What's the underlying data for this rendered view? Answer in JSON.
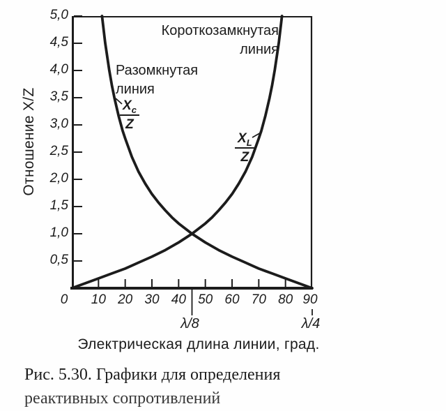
{
  "ink": "#1c1c1c",
  "chart_data": {
    "type": "line",
    "title": "",
    "xlabel": "Электрическая длина линии, град.",
    "ylabel": "Отношение X/Z",
    "xlim": [
      0,
      90
    ],
    "ylim": [
      0,
      5
    ],
    "grid": false,
    "legend_position": "none",
    "x_tick_values": [
      0,
      10,
      20,
      30,
      40,
      50,
      60,
      70,
      80,
      90
    ],
    "x_tick_labels": [
      "0",
      "10",
      "20",
      "30",
      "40",
      "50",
      "60",
      "70",
      "80",
      "90"
    ],
    "x_tick_marks": [
      10,
      20,
      30,
      40,
      50,
      60,
      70,
      80
    ],
    "y_tick_values": [
      0.5,
      1.0,
      1.5,
      2.0,
      2.5,
      3.0,
      3.5,
      4.0,
      4.5,
      5.0
    ],
    "y_tick_labels": [
      "0,5",
      "1,0",
      "1,5",
      "2,0",
      "2,5",
      "3,0",
      "3,5",
      "4,0",
      "4,5",
      "5,0"
    ],
    "x_markers": [
      {
        "deg": 45,
        "label": "λ/8"
      },
      {
        "deg": 90,
        "label": "λ/4"
      }
    ],
    "series": [
      {
        "name": "Разомкнутая линия — Xc/Z = ctg θ",
        "label": {
          "base": "X",
          "sub": "c",
          "den": "Z"
        },
        "x": [
          11.31,
          12.5,
          14,
          15,
          16,
          17.5,
          19,
          20,
          22.5,
          25,
          27.5,
          30,
          32.5,
          35,
          37.5,
          40,
          45,
          50,
          55,
          60,
          65,
          70,
          75,
          80,
          85,
          90
        ],
        "y": [
          5.0,
          4.51,
          4.01,
          3.73,
          3.49,
          3.17,
          2.9,
          2.75,
          2.41,
          2.14,
          1.92,
          1.73,
          1.57,
          1.43,
          1.3,
          1.19,
          1.0,
          0.84,
          0.7,
          0.58,
          0.47,
          0.36,
          0.27,
          0.18,
          0.09,
          0.0
        ]
      },
      {
        "name": "Короткозамкнутая линия — XL/Z = tg θ",
        "label": {
          "base": "X",
          "sub": "L",
          "den": "Z"
        },
        "x": [
          0,
          5,
          10,
          15,
          20,
          25,
          30,
          35,
          40,
          45,
          50,
          52.5,
          55,
          57.5,
          60,
          62.5,
          65,
          67.5,
          70,
          71,
          72.5,
          74,
          75,
          76,
          77.5,
          78.69
        ],
        "y": [
          0,
          0.09,
          0.18,
          0.27,
          0.36,
          0.47,
          0.58,
          0.7,
          0.84,
          1.0,
          1.19,
          1.3,
          1.43,
          1.57,
          1.73,
          1.92,
          2.14,
          2.41,
          2.75,
          2.9,
          3.17,
          3.49,
          3.73,
          4.01,
          4.51,
          5.0
        ]
      }
    ]
  },
  "annotations": {
    "shorted_line1": "Короткозамкнутая",
    "shorted_line2": "линия",
    "open_line1": "Разомкнутая",
    "open_line2": "линия"
  },
  "caption": {
    "line1": "Рис. 5.30. Графики для определения",
    "line2": "реактивных сопротивлений"
  }
}
